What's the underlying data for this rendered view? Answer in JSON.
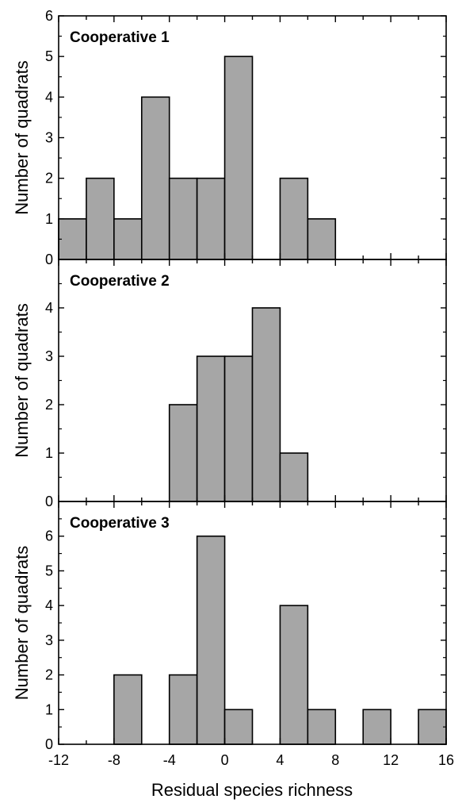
{
  "chart_data": {
    "type": "bar",
    "subtype": "histogram-stacked-panels",
    "xlabel": "Residual species richness",
    "ylabel": "Number of quadrats",
    "xlim": [
      -12,
      16
    ],
    "bin_width": 2,
    "x_ticks": [
      -12,
      -8,
      -4,
      0,
      4,
      8,
      12,
      16
    ],
    "bar_color": "#a6a6a6",
    "panels": [
      {
        "title": "Cooperative 1",
        "ylim": [
          0,
          6
        ],
        "y_ticks": [
          0,
          1,
          2,
          3,
          4,
          5,
          6
        ],
        "bins": [
          {
            "x0": -12,
            "x1": -10,
            "count": 1
          },
          {
            "x0": -10,
            "x1": -8,
            "count": 2
          },
          {
            "x0": -8,
            "x1": -6,
            "count": 1
          },
          {
            "x0": -6,
            "x1": -4,
            "count": 4
          },
          {
            "x0": -4,
            "x1": -2,
            "count": 2
          },
          {
            "x0": -2,
            "x1": 0,
            "count": 2
          },
          {
            "x0": 0,
            "x1": 2,
            "count": 5
          },
          {
            "x0": 4,
            "x1": 6,
            "count": 2
          },
          {
            "x0": 6,
            "x1": 8,
            "count": 1
          }
        ]
      },
      {
        "title": "Cooperative 2",
        "ylim": [
          0,
          5
        ],
        "y_ticks": [
          0,
          1,
          2,
          3,
          4
        ],
        "bins": [
          {
            "x0": -4,
            "x1": -2,
            "count": 2
          },
          {
            "x0": -2,
            "x1": 0,
            "count": 3
          },
          {
            "x0": 0,
            "x1": 2,
            "count": 3
          },
          {
            "x0": 2,
            "x1": 4,
            "count": 4
          },
          {
            "x0": 4,
            "x1": 6,
            "count": 1
          }
        ]
      },
      {
        "title": "Cooperative 3",
        "ylim": [
          0,
          7
        ],
        "y_ticks": [
          0,
          1,
          2,
          3,
          4,
          5,
          6
        ],
        "bins": [
          {
            "x0": -8,
            "x1": -6,
            "count": 2
          },
          {
            "x0": -4,
            "x1": -2,
            "count": 2
          },
          {
            "x0": -2,
            "x1": 0,
            "count": 6
          },
          {
            "x0": 0,
            "x1": 2,
            "count": 1
          },
          {
            "x0": 4,
            "x1": 6,
            "count": 4
          },
          {
            "x0": 6,
            "x1": 8,
            "count": 1
          },
          {
            "x0": 10,
            "x1": 12,
            "count": 1
          },
          {
            "x0": 14,
            "x1": 16,
            "count": 1
          }
        ]
      }
    ]
  }
}
